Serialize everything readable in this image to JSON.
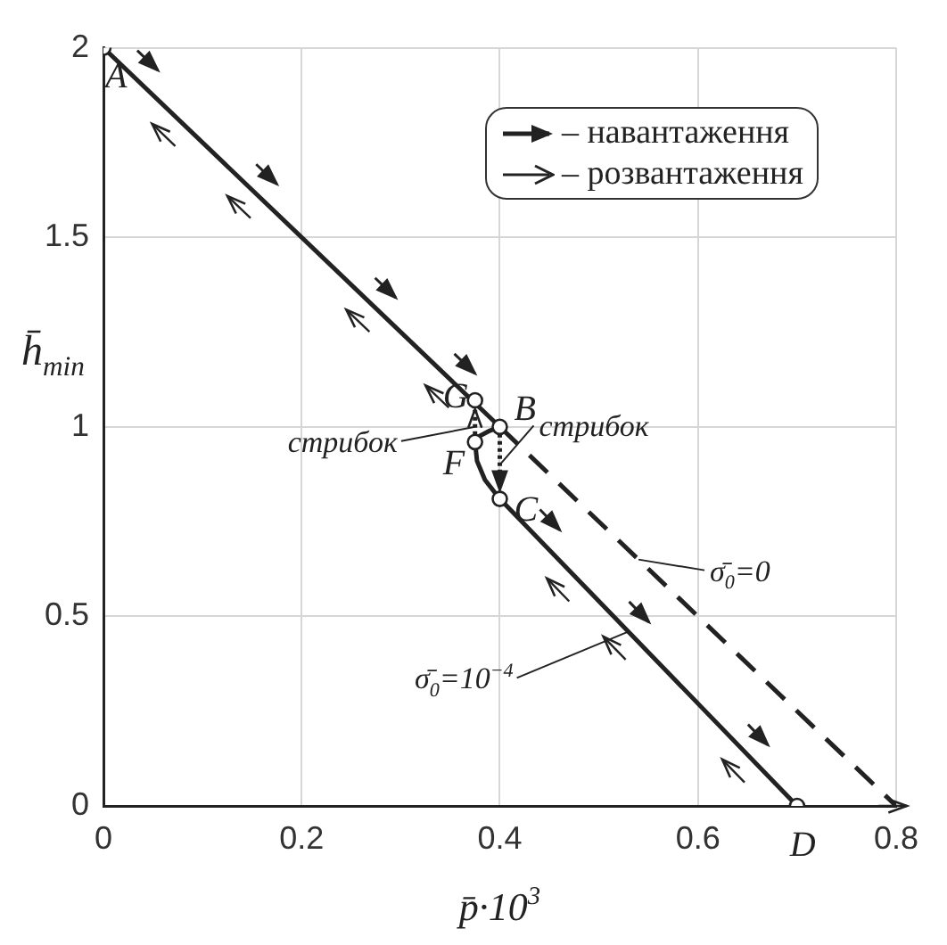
{
  "chart_data": {
    "type": "line",
    "xlabel": "p̄·10$^{3}$",
    "ylabel": "h̄$_{min}$",
    "xlim": [
      0,
      0.8
    ],
    "xticks": [
      0,
      0.2,
      0.4,
      0.6,
      0.8
    ],
    "ylim": [
      0,
      2
    ],
    "yticks": [
      0,
      0.5,
      1,
      1.5,
      2
    ],
    "grid": true,
    "series": [
      {
        "color": "#222222",
        "line_style": "solid",
        "x": [
          0,
          0.4
        ],
        "values": [
          2,
          1
        ]
      },
      {
        "color": "#222222",
        "line_style": "solid",
        "x": [
          0.4,
          0.39,
          0.379,
          0.375,
          0.377,
          0.385,
          0.4,
          0.7
        ],
        "values": [
          1,
          0.99,
          0.975,
          0.96,
          0.91,
          0.86,
          0.81,
          0
        ]
      },
      {
        "color": "#222222",
        "line_style": "dashed",
        "x": [
          0.4,
          0.8
        ],
        "values": [
          1,
          0
        ]
      },
      {
        "color": "#222222",
        "line_style": "dotted",
        "x": [
          0.4,
          0.4
        ],
        "values": [
          1,
          0.81
        ]
      },
      {
        "color": "#222222",
        "line_style": "dotted",
        "x": [
          0.375,
          0.375
        ],
        "values": [
          0.96,
          1.07
        ]
      },
      {
        "type": "scatter",
        "color": "#222222",
        "marker": "circle",
        "x": [
          0,
          0.4,
          0.4,
          0.7,
          0.375,
          0.375
        ],
        "values": [
          2,
          1,
          0.81,
          0,
          0.96,
          1.07
        ]
      }
    ],
    "annotations": [
      {
        "text": "A",
        "x": 0,
        "y": 2
      },
      {
        "text": "B",
        "x": 0.4,
        "y": 1
      },
      {
        "text": "C",
        "x": 0.4,
        "y": 0.81
      },
      {
        "text": "D",
        "x": 0.7,
        "y": 0
      },
      {
        "text": "G",
        "x": 0.375,
        "y": 1.07
      },
      {
        "text": "F",
        "x": 0.375,
        "y": 0.96
      },
      {
        "text": "стрибок",
        "x": 0.375,
        "y": 1.0
      },
      {
        "text": "стрибок",
        "x": 0.4,
        "y": 0.9
      },
      {
        "text": "σ̄$_{0}$=0",
        "x": 0.54,
        "y": 0.65
      },
      {
        "text": "σ̄$_{0}$=10$^{−4}$",
        "x": 0.53,
        "y": 0.46
      },
      "– навантаження",
      "– розвантаження"
    ]
  }
}
